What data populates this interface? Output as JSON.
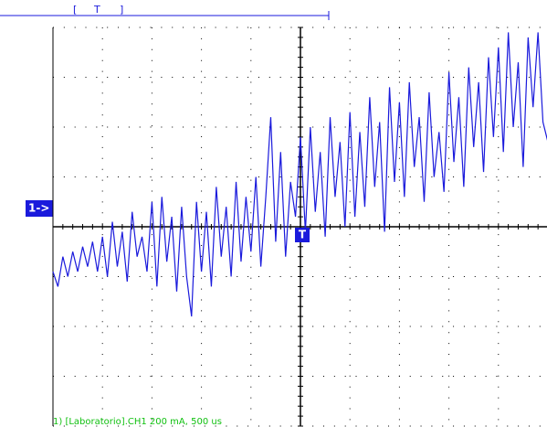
{
  "chart_data": {
    "type": "line",
    "caption": "1) [Laboratorio].CH1 200 mA, 500 us",
    "channel_marker": "1->",
    "trigger_marker": "T",
    "trigger_bar": [
      "[",
      "T",
      "]"
    ],
    "color": "#1a1adc",
    "xlim": [
      0,
      10
    ],
    "ylim": [
      -4,
      4
    ],
    "xticks": [
      0,
      1,
      2,
      3,
      4,
      5,
      6,
      7,
      8,
      9,
      10
    ],
    "yticks": [
      -4,
      -3,
      -2,
      -1,
      0,
      1,
      2,
      3,
      4
    ],
    "grid": true,
    "x": [
      0,
      0.1,
      0.2,
      0.3,
      0.4,
      0.5,
      0.6,
      0.7,
      0.8,
      0.9,
      1,
      1.1,
      1.2,
      1.3,
      1.4,
      1.5,
      1.6,
      1.7,
      1.8,
      1.9,
      2,
      2.1,
      2.2,
      2.3,
      2.4,
      2.5,
      2.6,
      2.7,
      2.8,
      2.9,
      3,
      3.1,
      3.2,
      3.3,
      3.4,
      3.5,
      3.6,
      3.7,
      3.8,
      3.9,
      4,
      4.1,
      4.2,
      4.3,
      4.4,
      4.5,
      4.6,
      4.7,
      4.8,
      4.9,
      5,
      5.1,
      5.2,
      5.3,
      5.4,
      5.5,
      5.6,
      5.7,
      5.8,
      5.9,
      6,
      6.1,
      6.2,
      6.3,
      6.4,
      6.5,
      6.6,
      6.7,
      6.8,
      6.9,
      7,
      7.1,
      7.2,
      7.3,
      7.4,
      7.5,
      7.6,
      7.7,
      7.8,
      7.9,
      8,
      8.1,
      8.2,
      8.3,
      8.4,
      8.5,
      8.6,
      8.7,
      8.8,
      8.9,
      9,
      9.1,
      9.2,
      9.3,
      9.4,
      9.5,
      9.6,
      9.7,
      9.8,
      9.9,
      10
    ],
    "values": [
      -0.9,
      -1.2,
      -0.6,
      -1.0,
      -0.5,
      -0.9,
      -0.4,
      -0.8,
      -0.3,
      -0.9,
      -0.2,
      -1.0,
      0.1,
      -0.8,
      -0.1,
      -1.1,
      0.3,
      -0.6,
      -0.2,
      -0.9,
      0.5,
      -1.2,
      0.6,
      -0.7,
      0.2,
      -1.3,
      0.4,
      -1.0,
      -1.8,
      0.5,
      -0.9,
      0.3,
      -1.2,
      0.8,
      -0.6,
      0.4,
      -1.0,
      0.9,
      -0.7,
      0.6,
      -0.5,
      1.0,
      -0.8,
      0.6,
      2.2,
      -0.3,
      1.5,
      -0.6,
      0.9,
      0.2,
      1.8,
      -0.1,
      2.0,
      0.3,
      1.5,
      -0.2,
      2.2,
      0.6,
      1.7,
      0.0,
      2.3,
      0.2,
      1.9,
      0.4,
      2.6,
      0.8,
      2.1,
      -0.1,
      2.8,
      0.9,
      2.5,
      0.6,
      2.9,
      1.2,
      2.2,
      0.5,
      2.7,
      1.0,
      1.9,
      0.7,
      3.1,
      1.3,
      2.6,
      0.8,
      3.2,
      1.6,
      2.9,
      1.1,
      3.4,
      1.8,
      3.6,
      1.5,
      3.9,
      2.0,
      3.3,
      1.2,
      3.8,
      2.4,
      3.9,
      2.1,
      1.7
    ]
  }
}
